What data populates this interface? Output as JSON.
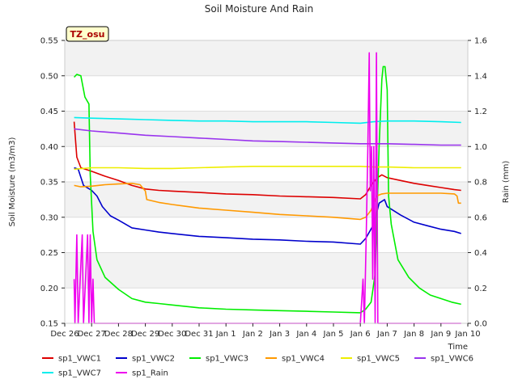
{
  "chart_data": {
    "type": "line",
    "title": "Soil Moisture And Rain",
    "xlabel": "Time",
    "ylabel": "Soil Moisture (m3/m3)",
    "y2label": "Rain (mm)",
    "annotation": "TZ_osu",
    "xlim": [
      0,
      15
    ],
    "ylim": [
      0.15,
      0.55
    ],
    "y2lim": [
      0.0,
      1.6
    ],
    "x_ticks": [
      {
        "x": 0,
        "label": "Dec 26"
      },
      {
        "x": 1,
        "label": "Dec 27"
      },
      {
        "x": 2,
        "label": "Dec 28"
      },
      {
        "x": 3,
        "label": "Dec 29"
      },
      {
        "x": 4,
        "label": "Dec 30"
      },
      {
        "x": 5,
        "label": "Dec 31"
      },
      {
        "x": 6,
        "label": "Jan 1"
      },
      {
        "x": 7,
        "label": "Jan 2"
      },
      {
        "x": 8,
        "label": "Jan 3"
      },
      {
        "x": 9,
        "label": "Jan 4"
      },
      {
        "x": 10,
        "label": "Jan 5"
      },
      {
        "x": 11,
        "label": "Jan 6"
      },
      {
        "x": 12,
        "label": "Jan 7"
      },
      {
        "x": 13,
        "label": "Jan 8"
      },
      {
        "x": 14,
        "label": "Jan 9"
      },
      {
        "x": 15,
        "label": "Jan 10"
      }
    ],
    "y_ticks": [
      "0.15",
      "0.20",
      "0.25",
      "0.30",
      "0.35",
      "0.40",
      "0.45",
      "0.50",
      "0.55"
    ],
    "y2_ticks": [
      "0.0",
      "0.2",
      "0.4",
      "0.6",
      "0.8",
      "1.0",
      "1.2",
      "1.4",
      "1.6"
    ],
    "grid": true,
    "legend_position": "bottom",
    "series": [
      {
        "name": "sp1_VWC1",
        "color": "#dd0000",
        "axis": "left",
        "points": [
          [
            0.35,
            0.435
          ],
          [
            0.45,
            0.385
          ],
          [
            0.6,
            0.37
          ],
          [
            1.0,
            0.365
          ],
          [
            1.5,
            0.358
          ],
          [
            2.0,
            0.352
          ],
          [
            2.5,
            0.345
          ],
          [
            3.0,
            0.34
          ],
          [
            3.5,
            0.338
          ],
          [
            4.0,
            0.337
          ],
          [
            5.0,
            0.335
          ],
          [
            6.0,
            0.333
          ],
          [
            7.0,
            0.332
          ],
          [
            8.0,
            0.33
          ],
          [
            9.0,
            0.329
          ],
          [
            10.0,
            0.328
          ],
          [
            11.0,
            0.326
          ],
          [
            11.2,
            0.332
          ],
          [
            11.4,
            0.345
          ],
          [
            11.6,
            0.355
          ],
          [
            11.8,
            0.36
          ],
          [
            12.0,
            0.356
          ],
          [
            12.5,
            0.352
          ],
          [
            13.0,
            0.348
          ],
          [
            13.5,
            0.345
          ],
          [
            14.0,
            0.342
          ],
          [
            14.5,
            0.339
          ],
          [
            14.75,
            0.338
          ]
        ]
      },
      {
        "name": "sp1_VWC2",
        "color": "#0000cc",
        "axis": "left",
        "points": [
          [
            0.35,
            0.37
          ],
          [
            0.5,
            0.368
          ],
          [
            0.7,
            0.345
          ],
          [
            1.0,
            0.338
          ],
          [
            1.2,
            0.33
          ],
          [
            1.4,
            0.315
          ],
          [
            1.7,
            0.302
          ],
          [
            2.0,
            0.296
          ],
          [
            2.5,
            0.285
          ],
          [
            3.0,
            0.282
          ],
          [
            3.5,
            0.279
          ],
          [
            4.0,
            0.277
          ],
          [
            5.0,
            0.273
          ],
          [
            6.0,
            0.271
          ],
          [
            7.0,
            0.269
          ],
          [
            8.0,
            0.268
          ],
          [
            9.0,
            0.266
          ],
          [
            10.0,
            0.265
          ],
          [
            11.0,
            0.262
          ],
          [
            11.2,
            0.27
          ],
          [
            11.5,
            0.29
          ],
          [
            11.7,
            0.32
          ],
          [
            11.9,
            0.325
          ],
          [
            12.0,
            0.315
          ],
          [
            12.5,
            0.303
          ],
          [
            13.0,
            0.293
          ],
          [
            13.5,
            0.288
          ],
          [
            14.0,
            0.283
          ],
          [
            14.5,
            0.28
          ],
          [
            14.75,
            0.277
          ]
        ]
      },
      {
        "name": "sp1_VWC3",
        "color": "#00ee00",
        "axis": "left",
        "points": [
          [
            0.35,
            0.498
          ],
          [
            0.45,
            0.502
          ],
          [
            0.6,
            0.5
          ],
          [
            0.75,
            0.47
          ],
          [
            0.9,
            0.46
          ],
          [
            0.95,
            0.36
          ],
          [
            1.05,
            0.28
          ],
          [
            1.2,
            0.24
          ],
          [
            1.5,
            0.215
          ],
          [
            2.0,
            0.198
          ],
          [
            2.5,
            0.185
          ],
          [
            3.0,
            0.18
          ],
          [
            3.5,
            0.178
          ],
          [
            4.0,
            0.176
          ],
          [
            5.0,
            0.172
          ],
          [
            6.0,
            0.17
          ],
          [
            7.0,
            0.169
          ],
          [
            8.0,
            0.168
          ],
          [
            9.0,
            0.167
          ],
          [
            10.0,
            0.166
          ],
          [
            11.0,
            0.165
          ],
          [
            11.2,
            0.17
          ],
          [
            11.4,
            0.18
          ],
          [
            11.55,
            0.22
          ],
          [
            11.7,
            0.4
          ],
          [
            11.8,
            0.495
          ],
          [
            11.85,
            0.513
          ],
          [
            11.92,
            0.513
          ],
          [
            12.0,
            0.48
          ],
          [
            12.05,
            0.33
          ],
          [
            12.15,
            0.29
          ],
          [
            12.4,
            0.24
          ],
          [
            12.8,
            0.215
          ],
          [
            13.2,
            0.2
          ],
          [
            13.6,
            0.19
          ],
          [
            14.0,
            0.185
          ],
          [
            14.4,
            0.18
          ],
          [
            14.75,
            0.177
          ]
        ]
      },
      {
        "name": "sp1_VWC4",
        "color": "#ff9900",
        "axis": "left",
        "points": [
          [
            0.35,
            0.345
          ],
          [
            0.6,
            0.343
          ],
          [
            1.0,
            0.344
          ],
          [
            1.5,
            0.346
          ],
          [
            2.0,
            0.347
          ],
          [
            2.5,
            0.348
          ],
          [
            2.8,
            0.346
          ],
          [
            3.0,
            0.337
          ],
          [
            3.05,
            0.325
          ],
          [
            3.5,
            0.321
          ],
          [
            4.0,
            0.318
          ],
          [
            5.0,
            0.313
          ],
          [
            6.0,
            0.31
          ],
          [
            7.0,
            0.307
          ],
          [
            8.0,
            0.304
          ],
          [
            9.0,
            0.302
          ],
          [
            10.0,
            0.3
          ],
          [
            11.0,
            0.297
          ],
          [
            11.2,
            0.3
          ],
          [
            11.4,
            0.31
          ],
          [
            11.6,
            0.33
          ],
          [
            11.8,
            0.333
          ],
          [
            12.0,
            0.334
          ],
          [
            13.0,
            0.334
          ],
          [
            14.0,
            0.334
          ],
          [
            14.5,
            0.333
          ],
          [
            14.6,
            0.33
          ],
          [
            14.65,
            0.32
          ],
          [
            14.75,
            0.32
          ]
        ]
      },
      {
        "name": "sp1_VWC5",
        "color": "#eeee00",
        "axis": "left",
        "points": [
          [
            0.35,
            0.368
          ],
          [
            1.0,
            0.37
          ],
          [
            2.0,
            0.37
          ],
          [
            3.0,
            0.369
          ],
          [
            4.0,
            0.369
          ],
          [
            5.0,
            0.37
          ],
          [
            6.0,
            0.371
          ],
          [
            7.0,
            0.372
          ],
          [
            8.0,
            0.372
          ],
          [
            9.0,
            0.372
          ],
          [
            10.0,
            0.372
          ],
          [
            11.0,
            0.372
          ],
          [
            11.5,
            0.371
          ],
          [
            12.0,
            0.371
          ],
          [
            13.0,
            0.37
          ],
          [
            14.0,
            0.37
          ],
          [
            14.75,
            0.37
          ]
        ]
      },
      {
        "name": "sp1_VWC6",
        "color": "#9933ee",
        "axis": "left",
        "points": [
          [
            0.35,
            0.425
          ],
          [
            1.0,
            0.422
          ],
          [
            2.0,
            0.419
          ],
          [
            3.0,
            0.416
          ],
          [
            4.0,
            0.414
          ],
          [
            5.0,
            0.412
          ],
          [
            6.0,
            0.41
          ],
          [
            7.0,
            0.408
          ],
          [
            8.0,
            0.407
          ],
          [
            9.0,
            0.406
          ],
          [
            10.0,
            0.405
          ],
          [
            11.0,
            0.404
          ],
          [
            11.5,
            0.404
          ],
          [
            12.0,
            0.404
          ],
          [
            13.0,
            0.403
          ],
          [
            14.0,
            0.402
          ],
          [
            14.75,
            0.402
          ]
        ]
      },
      {
        "name": "sp1_VWC7",
        "color": "#00eeee",
        "axis": "left",
        "points": [
          [
            0.35,
            0.441
          ],
          [
            1.0,
            0.44
          ],
          [
            2.0,
            0.439
          ],
          [
            3.0,
            0.438
          ],
          [
            4.0,
            0.437
          ],
          [
            5.0,
            0.436
          ],
          [
            6.0,
            0.436
          ],
          [
            7.0,
            0.435
          ],
          [
            8.0,
            0.435
          ],
          [
            9.0,
            0.435
          ],
          [
            10.0,
            0.434
          ],
          [
            11.0,
            0.433
          ],
          [
            11.5,
            0.435
          ],
          [
            12.0,
            0.436
          ],
          [
            13.0,
            0.436
          ],
          [
            14.0,
            0.435
          ],
          [
            14.75,
            0.434
          ]
        ]
      },
      {
        "name": "sp1_Rain",
        "color": "#ee00ee",
        "axis": "right",
        "points": [
          [
            0.35,
            0.25
          ],
          [
            0.38,
            0.0
          ],
          [
            0.45,
            0.5
          ],
          [
            0.5,
            0.0
          ],
          [
            0.65,
            0.5
          ],
          [
            0.7,
            0.0
          ],
          [
            0.85,
            0.5
          ],
          [
            0.9,
            0.0
          ],
          [
            0.95,
            0.5
          ],
          [
            1.0,
            0.0
          ],
          [
            1.05,
            0.25
          ],
          [
            1.1,
            0.0
          ],
          [
            11.0,
            0.0
          ],
          [
            11.1,
            0.25
          ],
          [
            11.15,
            0.0
          ],
          [
            11.22,
            0.5
          ],
          [
            11.28,
            1.0
          ],
          [
            11.33,
            1.53
          ],
          [
            11.37,
            0.75
          ],
          [
            11.42,
            1.0
          ],
          [
            11.46,
            0.25
          ],
          [
            11.5,
            1.0
          ],
          [
            11.55,
            0.0
          ],
          [
            11.6,
            1.53
          ],
          [
            11.65,
            0.0
          ],
          [
            12.5,
            0.0
          ],
          [
            14.75,
            0.0
          ]
        ]
      }
    ]
  }
}
